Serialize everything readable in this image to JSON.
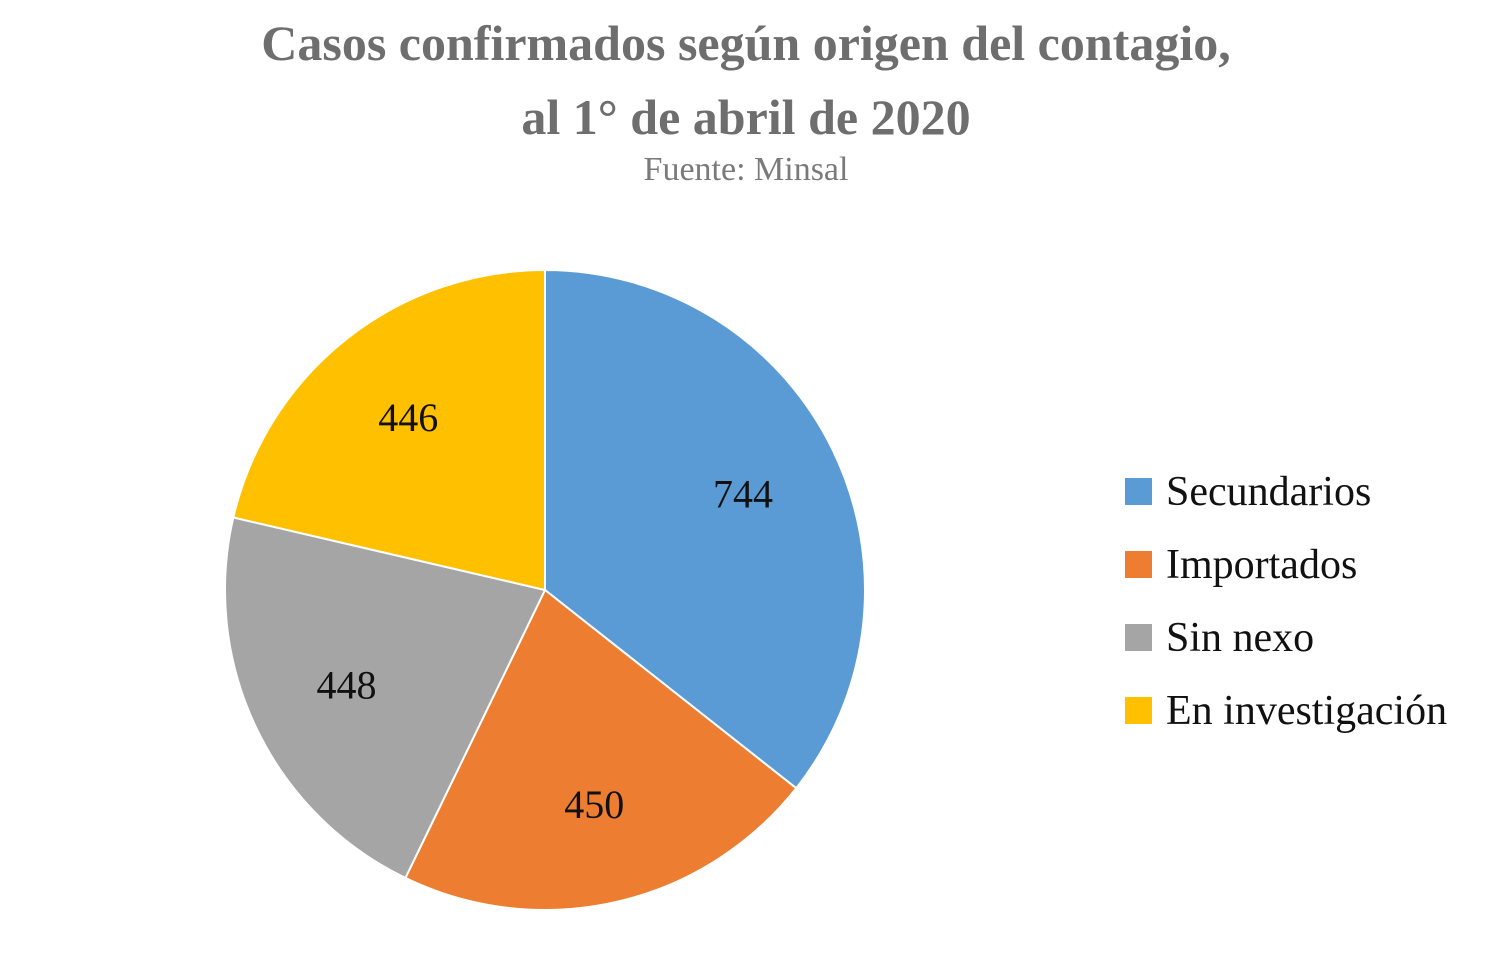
{
  "chart_data": {
    "type": "pie",
    "title_lines": [
      "Casos confirmados según origen del contagio,",
      "al 1° de abril de 2020"
    ],
    "subtitle": "Fuente: Minsal",
    "legend_position": "right",
    "slices": [
      {
        "label": "Secundarios",
        "value": 744,
        "color": "#5b9bd5"
      },
      {
        "label": "Importados",
        "value": 450,
        "color": "#ed7d31"
      },
      {
        "label": "Sin nexo",
        "value": 448,
        "color": "#a5a5a5"
      },
      {
        "label": "En investigación",
        "value": 446,
        "color": "#ffc000"
      }
    ]
  }
}
